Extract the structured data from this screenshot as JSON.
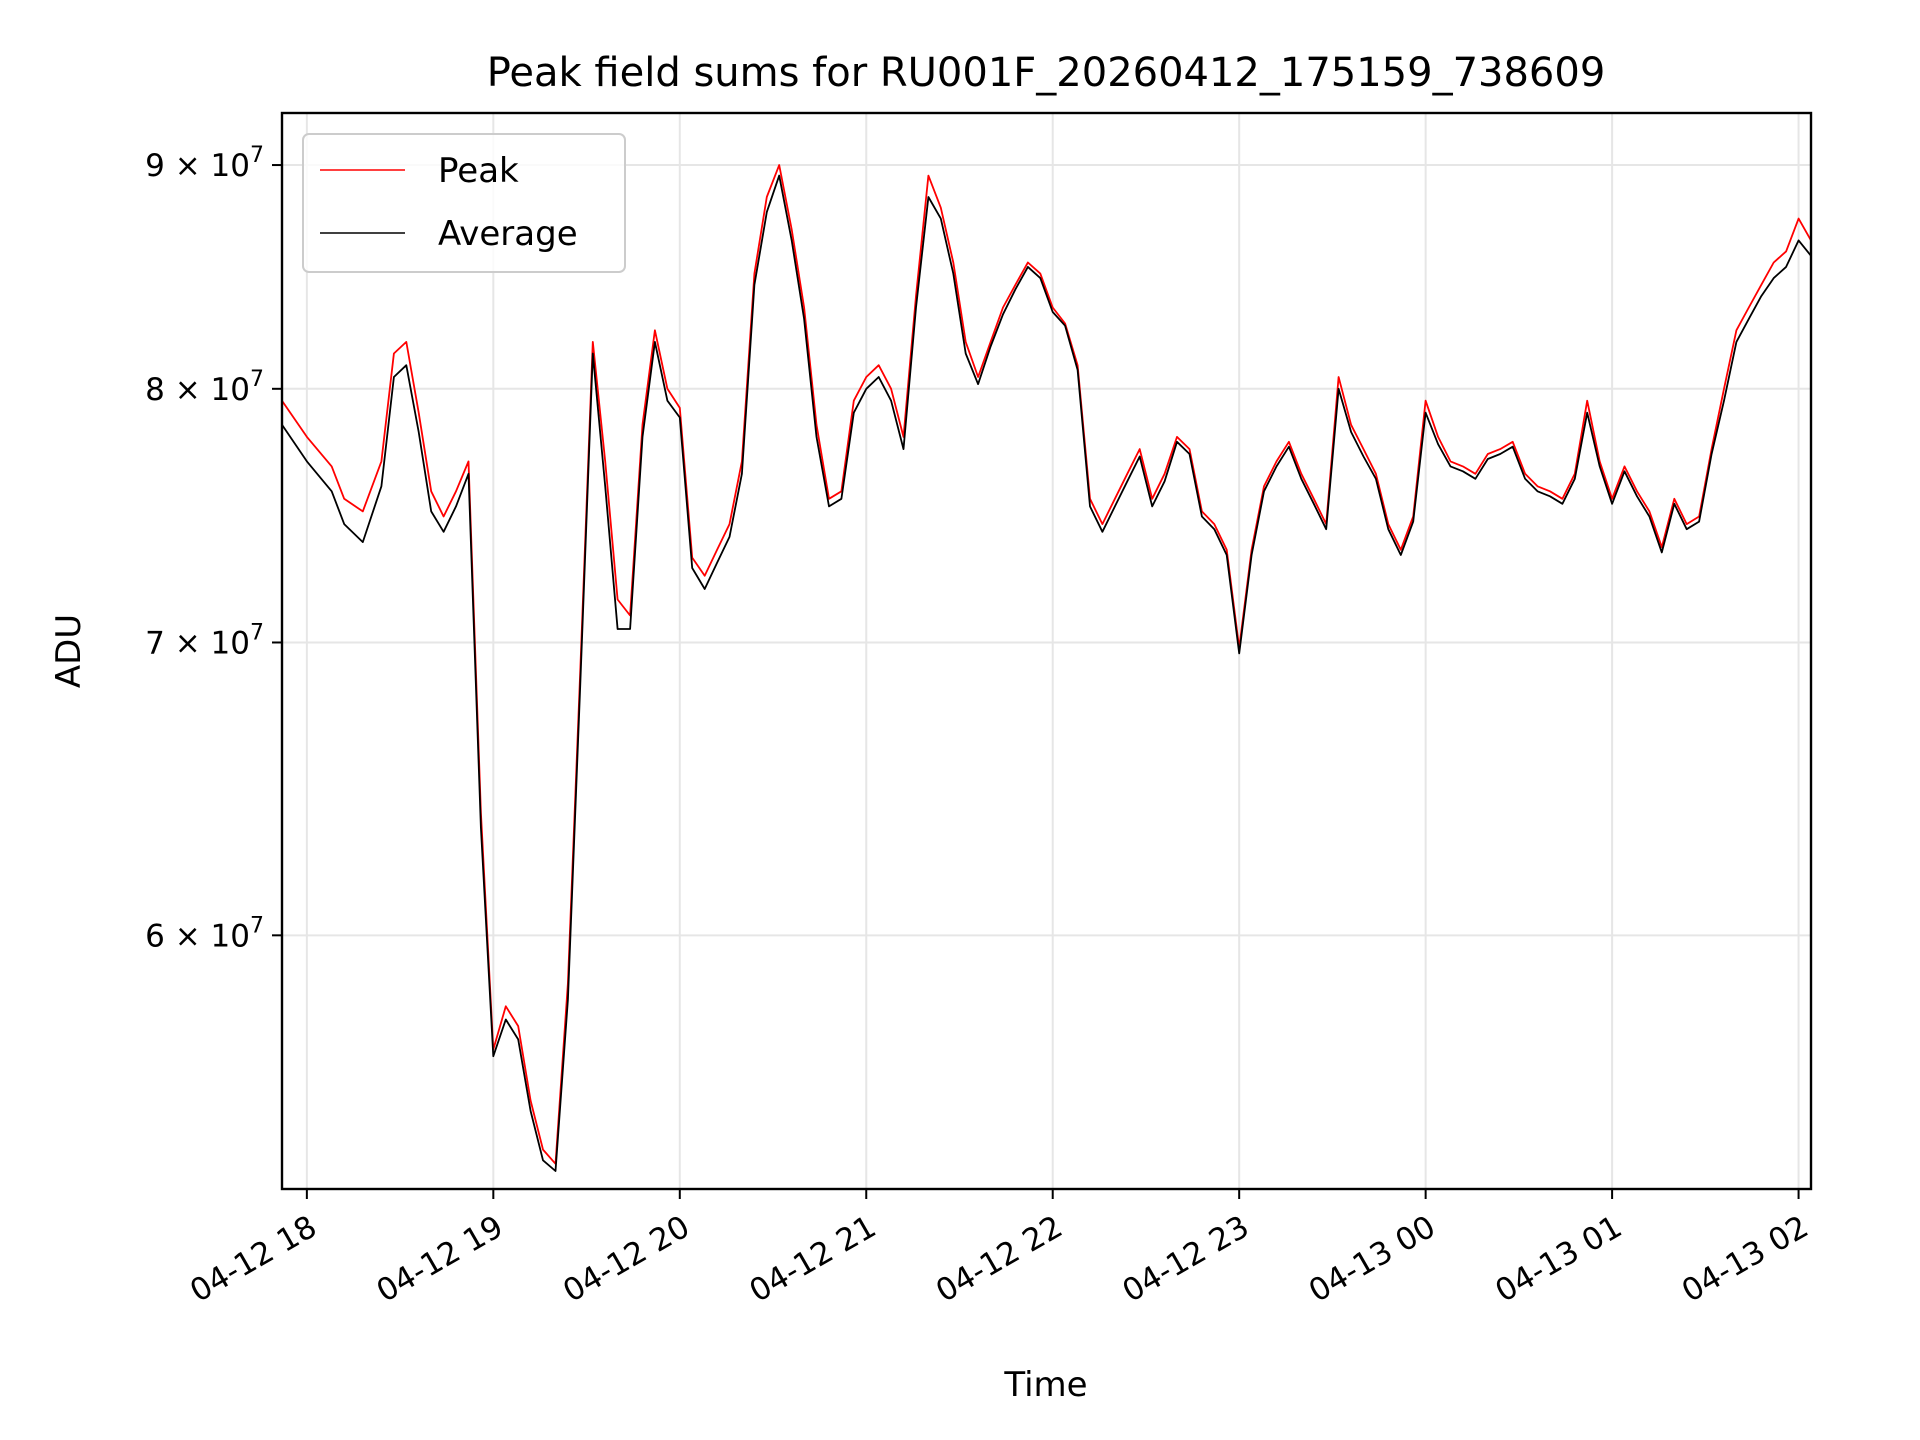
{
  "chart_data": {
    "type": "line",
    "title": "Peak field sums for RU001F_20260412_175159_738609",
    "xlabel": "Time",
    "ylabel": "ADU",
    "y_scale": "log",
    "xlim": [
      "2026-04-12 17:52",
      "2026-04-13 02:04"
    ],
    "ylim": [
      52500000,
      92500000
    ],
    "grid": true,
    "legend_position": "top-left",
    "x_ticks": [
      {
        "value": "2026-04-12 18:00",
        "label": "04-12 18"
      },
      {
        "value": "2026-04-12 19:00",
        "label": "04-12 19"
      },
      {
        "value": "2026-04-12 20:00",
        "label": "04-12 20"
      },
      {
        "value": "2026-04-12 21:00",
        "label": "04-12 21"
      },
      {
        "value": "2026-04-12 22:00",
        "label": "04-12 22"
      },
      {
        "value": "2026-04-12 23:00",
        "label": "04-12 23"
      },
      {
        "value": "2026-04-13 00:00",
        "label": "04-13 00"
      },
      {
        "value": "2026-04-13 01:00",
        "label": "04-13 01"
      },
      {
        "value": "2026-04-13 02:00",
        "label": "04-13 02"
      }
    ],
    "y_ticks": [
      {
        "value": 60000000,
        "mant": "6",
        "exp": "7"
      },
      {
        "value": 70000000,
        "mant": "7",
        "exp": "7"
      },
      {
        "value": 80000000,
        "mant": "8",
        "exp": "7"
      },
      {
        "value": 90000000,
        "mant": "9",
        "exp": "7"
      }
    ],
    "series": [
      {
        "name": "Peak",
        "color": "#ff0000",
        "x": [
          "2026-04-12 17:52",
          "2026-04-12 18:00",
          "2026-04-12 18:08",
          "2026-04-12 18:12",
          "2026-04-12 18:18",
          "2026-04-12 18:24",
          "2026-04-12 18:28",
          "2026-04-12 18:32",
          "2026-04-12 18:36",
          "2026-04-12 18:40",
          "2026-04-12 18:44",
          "2026-04-12 18:48",
          "2026-04-12 18:52",
          "2026-04-12 18:56",
          "2026-04-12 19:00",
          "2026-04-12 19:04",
          "2026-04-12 19:08",
          "2026-04-12 19:12",
          "2026-04-12 19:16",
          "2026-04-12 19:20",
          "2026-04-12 19:24",
          "2026-04-12 19:28",
          "2026-04-12 19:32",
          "2026-04-12 19:36",
          "2026-04-12 19:40",
          "2026-04-12 19:44",
          "2026-04-12 19:48",
          "2026-04-12 19:52",
          "2026-04-12 19:56",
          "2026-04-12 20:00",
          "2026-04-12 20:04",
          "2026-04-12 20:08",
          "2026-04-12 20:12",
          "2026-04-12 20:16",
          "2026-04-12 20:20",
          "2026-04-12 20:24",
          "2026-04-12 20:28",
          "2026-04-12 20:32",
          "2026-04-12 20:36",
          "2026-04-12 20:40",
          "2026-04-12 20:44",
          "2026-04-12 20:48",
          "2026-04-12 20:52",
          "2026-04-12 20:56",
          "2026-04-12 21:00",
          "2026-04-12 21:04",
          "2026-04-12 21:08",
          "2026-04-12 21:12",
          "2026-04-12 21:16",
          "2026-04-12 21:20",
          "2026-04-12 21:24",
          "2026-04-12 21:28",
          "2026-04-12 21:32",
          "2026-04-12 21:36",
          "2026-04-12 21:40",
          "2026-04-12 21:44",
          "2026-04-12 21:48",
          "2026-04-12 21:52",
          "2026-04-12 21:56",
          "2026-04-12 22:00",
          "2026-04-12 22:04",
          "2026-04-12 22:08",
          "2026-04-12 22:12",
          "2026-04-12 22:16",
          "2026-04-12 22:20",
          "2026-04-12 22:24",
          "2026-04-12 22:28",
          "2026-04-12 22:32",
          "2026-04-12 22:36",
          "2026-04-12 22:40",
          "2026-04-12 22:44",
          "2026-04-12 22:48",
          "2026-04-12 22:52",
          "2026-04-12 22:56",
          "2026-04-12 23:00",
          "2026-04-12 23:04",
          "2026-04-12 23:08",
          "2026-04-12 23:12",
          "2026-04-12 23:16",
          "2026-04-12 23:20",
          "2026-04-12 23:24",
          "2026-04-12 23:28",
          "2026-04-12 23:32",
          "2026-04-12 23:36",
          "2026-04-12 23:40",
          "2026-04-12 23:44",
          "2026-04-12 23:48",
          "2026-04-12 23:52",
          "2026-04-12 23:56",
          "2026-04-13 00:00",
          "2026-04-13 00:04",
          "2026-04-13 00:08",
          "2026-04-13 00:12",
          "2026-04-13 00:16",
          "2026-04-13 00:20",
          "2026-04-13 00:24",
          "2026-04-13 00:28",
          "2026-04-13 00:32",
          "2026-04-13 00:36",
          "2026-04-13 00:40",
          "2026-04-13 00:44",
          "2026-04-13 00:48",
          "2026-04-13 00:52",
          "2026-04-13 00:56",
          "2026-04-13 01:00",
          "2026-04-13 01:04",
          "2026-04-13 01:08",
          "2026-04-13 01:12",
          "2026-04-13 01:16",
          "2026-04-13 01:20",
          "2026-04-13 01:24",
          "2026-04-13 01:28",
          "2026-04-13 01:32",
          "2026-04-13 01:36",
          "2026-04-13 01:40",
          "2026-04-13 01:44",
          "2026-04-13 01:48",
          "2026-04-13 01:52",
          "2026-04-13 01:56",
          "2026-04-13 02:00",
          "2026-04-13 02:04"
        ],
        "y": [
          79500000,
          78000000,
          76800000,
          75500000,
          75000000,
          77000000,
          81500000,
          82000000,
          79000000,
          75800000,
          74800000,
          75800000,
          77000000,
          64000000,
          56500000,
          57800000,
          57200000,
          55000000,
          53600000,
          53200000,
          58500000,
          69000000,
          82000000,
          77000000,
          71600000,
          71000000,
          78500000,
          82500000,
          80000000,
          79200000,
          73200000,
          72500000,
          73500000,
          74500000,
          77000000,
          85000000,
          88500000,
          90000000,
          87000000,
          83500000,
          78500000,
          75500000,
          75800000,
          79500000,
          80500000,
          81000000,
          80000000,
          78000000,
          84000000,
          89500000,
          88000000,
          85500000,
          82000000,
          80500000,
          82000000,
          83500000,
          84500000,
          85500000,
          85000000,
          83500000,
          82800000,
          81000000,
          75500000,
          74500000,
          75500000,
          76500000,
          77500000,
          75500000,
          76500000,
          78000000,
          77500000,
          75000000,
          74500000,
          73500000,
          69800000,
          73500000,
          76000000,
          77000000,
          77800000,
          76500000,
          75500000,
          74500000,
          80500000,
          78500000,
          77500000,
          76500000,
          74500000,
          73500000,
          74800000,
          79500000,
          78000000,
          77000000,
          76800000,
          76500000,
          77300000,
          77500000,
          77800000,
          76500000,
          76000000,
          75800000,
          75500000,
          76500000,
          79500000,
          77000000,
          75500000,
          76800000,
          75800000,
          75000000,
          73600000,
          75500000,
          74500000,
          74800000,
          77500000,
          80000000,
          82500000,
          83500000,
          84500000,
          85500000,
          86000000,
          87500000,
          86500000
        ]
      },
      {
        "name": "Average",
        "color": "#000000",
        "x": [
          "2026-04-12 17:52",
          "2026-04-12 18:00",
          "2026-04-12 18:08",
          "2026-04-12 18:12",
          "2026-04-12 18:18",
          "2026-04-12 18:24",
          "2026-04-12 18:28",
          "2026-04-12 18:32",
          "2026-04-12 18:36",
          "2026-04-12 18:40",
          "2026-04-12 18:44",
          "2026-04-12 18:48",
          "2026-04-12 18:52",
          "2026-04-12 18:56",
          "2026-04-12 19:00",
          "2026-04-12 19:04",
          "2026-04-12 19:08",
          "2026-04-12 19:12",
          "2026-04-12 19:16",
          "2026-04-12 19:20",
          "2026-04-12 19:24",
          "2026-04-12 19:28",
          "2026-04-12 19:32",
          "2026-04-12 19:36",
          "2026-04-12 19:40",
          "2026-04-12 19:44",
          "2026-04-12 19:48",
          "2026-04-12 19:52",
          "2026-04-12 19:56",
          "2026-04-12 20:00",
          "2026-04-12 20:04",
          "2026-04-12 20:08",
          "2026-04-12 20:12",
          "2026-04-12 20:16",
          "2026-04-12 20:20",
          "2026-04-12 20:24",
          "2026-04-12 20:28",
          "2026-04-12 20:32",
          "2026-04-12 20:36",
          "2026-04-12 20:40",
          "2026-04-12 20:44",
          "2026-04-12 20:48",
          "2026-04-12 20:52",
          "2026-04-12 20:56",
          "2026-04-12 21:00",
          "2026-04-12 21:04",
          "2026-04-12 21:08",
          "2026-04-12 21:12",
          "2026-04-12 21:16",
          "2026-04-12 21:20",
          "2026-04-12 21:24",
          "2026-04-12 21:28",
          "2026-04-12 21:32",
          "2026-04-12 21:36",
          "2026-04-12 21:40",
          "2026-04-12 21:44",
          "2026-04-12 21:48",
          "2026-04-12 21:52",
          "2026-04-12 21:56",
          "2026-04-12 22:00",
          "2026-04-12 22:04",
          "2026-04-12 22:08",
          "2026-04-12 22:12",
          "2026-04-12 22:16",
          "2026-04-12 22:20",
          "2026-04-12 22:24",
          "2026-04-12 22:28",
          "2026-04-12 22:32",
          "2026-04-12 22:36",
          "2026-04-12 22:40",
          "2026-04-12 22:44",
          "2026-04-12 22:48",
          "2026-04-12 22:52",
          "2026-04-12 22:56",
          "2026-04-12 23:00",
          "2026-04-12 23:04",
          "2026-04-12 23:08",
          "2026-04-12 23:12",
          "2026-04-12 23:16",
          "2026-04-12 23:20",
          "2026-04-12 23:24",
          "2026-04-12 23:28",
          "2026-04-12 23:32",
          "2026-04-12 23:36",
          "2026-04-12 23:40",
          "2026-04-12 23:44",
          "2026-04-12 23:48",
          "2026-04-12 23:52",
          "2026-04-12 23:56",
          "2026-04-13 00:00",
          "2026-04-13 00:04",
          "2026-04-13 00:08",
          "2026-04-13 00:12",
          "2026-04-13 00:16",
          "2026-04-13 00:20",
          "2026-04-13 00:24",
          "2026-04-13 00:28",
          "2026-04-13 00:32",
          "2026-04-13 00:36",
          "2026-04-13 00:40",
          "2026-04-13 00:44",
          "2026-04-13 00:48",
          "2026-04-13 00:52",
          "2026-04-13 00:56",
          "2026-04-13 01:00",
          "2026-04-13 01:04",
          "2026-04-13 01:08",
          "2026-04-13 01:12",
          "2026-04-13 01:16",
          "2026-04-13 01:20",
          "2026-04-13 01:24",
          "2026-04-13 01:28",
          "2026-04-13 01:32",
          "2026-04-13 01:36",
          "2026-04-13 01:40",
          "2026-04-13 01:44",
          "2026-04-13 01:48",
          "2026-04-13 01:52",
          "2026-04-13 01:56",
          "2026-04-13 02:00",
          "2026-04-13 02:04"
        ],
        "y": [
          78500000,
          77000000,
          75800000,
          74500000,
          73800000,
          76000000,
          80500000,
          81000000,
          78200000,
          75000000,
          74200000,
          75200000,
          76500000,
          63500000,
          56300000,
          57400000,
          56800000,
          54700000,
          53300000,
          53000000,
          58000000,
          68500000,
          81500000,
          76000000,
          70500000,
          70500000,
          78000000,
          82000000,
          79500000,
          78800000,
          72800000,
          72000000,
          73000000,
          74000000,
          76500000,
          84500000,
          87800000,
          89500000,
          86500000,
          83000000,
          78000000,
          75200000,
          75500000,
          79000000,
          80000000,
          80500000,
          79500000,
          77500000,
          83500000,
          88500000,
          87500000,
          85000000,
          81500000,
          80200000,
          81800000,
          83200000,
          84300000,
          85300000,
          84800000,
          83300000,
          82700000,
          80800000,
          75200000,
          74200000,
          75200000,
          76200000,
          77200000,
          75200000,
          76200000,
          77800000,
          77300000,
          74800000,
          74300000,
          73300000,
          69600000,
          73300000,
          75800000,
          76800000,
          77600000,
          76300000,
          75300000,
          74300000,
          80000000,
          78200000,
          77200000,
          76300000,
          74300000,
          73300000,
          74600000,
          79000000,
          77700000,
          76800000,
          76600000,
          76300000,
          77100000,
          77300000,
          77600000,
          76300000,
          75800000,
          75600000,
          75300000,
          76300000,
          79000000,
          76800000,
          75300000,
          76600000,
          75600000,
          74800000,
          73400000,
          75300000,
          74300000,
          74600000,
          77300000,
          79500000,
          82000000,
          83000000,
          84000000,
          84800000,
          85300000,
          86500000,
          85800000
        ]
      }
    ]
  }
}
